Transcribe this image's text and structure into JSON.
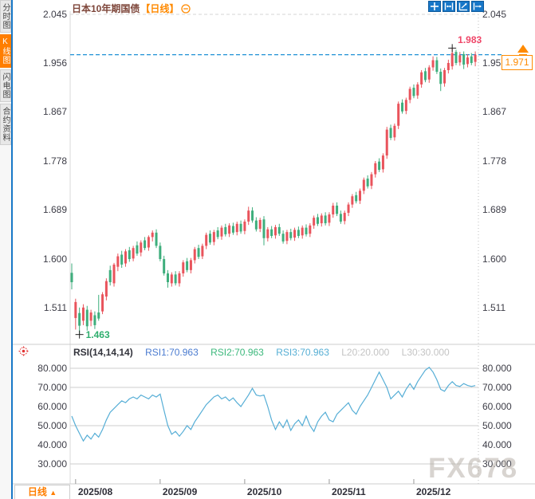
{
  "app": {
    "watermark": "FX678"
  },
  "sidebar": {
    "active_tab": "K线图",
    "tabs": [
      {
        "label": "分时图"
      },
      {
        "label": "K线图"
      },
      {
        "label": "闪电图"
      },
      {
        "label": "合约资料"
      }
    ]
  },
  "header": {
    "title": "日本10年期国债",
    "timeframe_tag": "【日线】"
  },
  "toolbar": {
    "icons": [
      "move-crosshair",
      "compress-horizontal",
      "expand-axis",
      "pan-right"
    ]
  },
  "timeframe_selector": {
    "label": "日线",
    "arrow": "▲"
  },
  "price_box": {
    "value": "1.971"
  },
  "rsi_panel": {
    "title": "RSI(14,14,14)",
    "rsi1": "RSI1:70.963",
    "rsi2": "RSI2:70.963",
    "rsi3": "RSI3:70.963",
    "l20": "L20:20.000",
    "l30": "L30:30.000"
  },
  "colors": {
    "up": "#e9545c",
    "down": "#3eae7c",
    "rsi_line": "#56aed6",
    "accent": "#ff8a00",
    "active_tab_bg": "#ff7e00",
    "toolbar_blue": "#1777c8",
    "price_line_blue": "#1e90d6",
    "high_label": "#ef4668",
    "low_label": "#2fae6e",
    "grid": "#d4d4d4"
  },
  "chart_data": {
    "type": "candlestick",
    "title": "日本10年期国债 日线 (Japan 10Y JGB yield, daily)",
    "legend_position": "none",
    "grid": "light",
    "x_axis": {
      "labels": [
        "2025/08",
        "2025/09",
        "2025/10",
        "2025/11",
        "2025/12"
      ],
      "tick_indices": [
        1,
        23,
        45,
        67,
        89
      ]
    },
    "y_axis_main": {
      "ticks": [
        "2.045",
        "1.956",
        "1.867",
        "1.778",
        "1.689",
        "1.600",
        "1.511"
      ],
      "range_shown": [
        1.463,
        2.045
      ]
    },
    "main": {
      "high": {
        "index": 99,
        "value": 1.983,
        "label": "1.983"
      },
      "low": {
        "index": 2,
        "value": 1.463,
        "label": "1.463"
      },
      "last": {
        "value": 1.971,
        "label": "1.971"
      },
      "candles_format": [
        "open",
        "high",
        "low",
        "close"
      ],
      "candles": [
        [
          1.575,
          1.592,
          1.545,
          1.558
        ],
        [
          1.493,
          1.528,
          1.472,
          1.522
        ],
        [
          1.502,
          1.512,
          1.463,
          1.479
        ],
        [
          1.488,
          1.518,
          1.48,
          1.512
        ],
        [
          1.508,
          1.515,
          1.47,
          1.478
        ],
        [
          1.488,
          1.508,
          1.478,
          1.503
        ],
        [
          1.498,
          1.505,
          1.473,
          1.48
        ],
        [
          1.503,
          1.535,
          1.488,
          1.492
        ],
        [
          1.505,
          1.54,
          1.5,
          1.536
        ],
        [
          1.532,
          1.565,
          1.525,
          1.56
        ],
        [
          1.58,
          1.588,
          1.552,
          1.558
        ],
        [
          1.556,
          1.593,
          1.55,
          1.59
        ],
        [
          1.586,
          1.61,
          1.578,
          1.605
        ],
        [
          1.608,
          1.615,
          1.584,
          1.59
        ],
        [
          1.592,
          1.618,
          1.586,
          1.614
        ],
        [
          1.616,
          1.622,
          1.595,
          1.6
        ],
        [
          1.601,
          1.624,
          1.596,
          1.62
        ],
        [
          1.625,
          1.632,
          1.606,
          1.61
        ],
        [
          1.612,
          1.634,
          1.605,
          1.63
        ],
        [
          1.634,
          1.64,
          1.616,
          1.62
        ],
        [
          1.621,
          1.643,
          1.615,
          1.64
        ],
        [
          1.64,
          1.652,
          1.632,
          1.648
        ],
        [
          1.648,
          1.654,
          1.62,
          1.624
        ],
        [
          1.624,
          1.63,
          1.596,
          1.6
        ],
        [
          1.6,
          1.606,
          1.57,
          1.574
        ],
        [
          1.574,
          1.58,
          1.548,
          1.558
        ],
        [
          1.556,
          1.576,
          1.55,
          1.572
        ],
        [
          1.572,
          1.578,
          1.552,
          1.556
        ],
        [
          1.556,
          1.578,
          1.55,
          1.574
        ],
        [
          1.574,
          1.598,
          1.568,
          1.594
        ],
        [
          1.596,
          1.602,
          1.576,
          1.58
        ],
        [
          1.58,
          1.602,
          1.574,
          1.598
        ],
        [
          1.598,
          1.622,
          1.592,
          1.618
        ],
        [
          1.62,
          1.626,
          1.6,
          1.604
        ],
        [
          1.605,
          1.628,
          1.6,
          1.624
        ],
        [
          1.624,
          1.648,
          1.618,
          1.644
        ],
        [
          1.646,
          1.652,
          1.626,
          1.63
        ],
        [
          1.631,
          1.653,
          1.625,
          1.649
        ],
        [
          1.652,
          1.658,
          1.636,
          1.64
        ],
        [
          1.641,
          1.661,
          1.635,
          1.657
        ],
        [
          1.658,
          1.664,
          1.641,
          1.645
        ],
        [
          1.646,
          1.665,
          1.64,
          1.661
        ],
        [
          1.66,
          1.666,
          1.644,
          1.648
        ],
        [
          1.649,
          1.668,
          1.643,
          1.664
        ],
        [
          1.664,
          1.67,
          1.646,
          1.65
        ],
        [
          1.651,
          1.672,
          1.645,
          1.668
        ],
        [
          1.668,
          1.695,
          1.662,
          1.688
        ],
        [
          1.688,
          1.694,
          1.666,
          1.67
        ],
        [
          1.67,
          1.676,
          1.65,
          1.654
        ],
        [
          1.655,
          1.675,
          1.649,
          1.671
        ],
        [
          1.672,
          1.678,
          1.625,
          1.638
        ],
        [
          1.638,
          1.658,
          1.632,
          1.654
        ],
        [
          1.654,
          1.66,
          1.638,
          1.642
        ],
        [
          1.643,
          1.662,
          1.637,
          1.658
        ],
        [
          1.658,
          1.664,
          1.642,
          1.646
        ],
        [
          1.646,
          1.652,
          1.628,
          1.632
        ],
        [
          1.633,
          1.653,
          1.627,
          1.649
        ],
        [
          1.649,
          1.655,
          1.634,
          1.638
        ],
        [
          1.639,
          1.657,
          1.633,
          1.653
        ],
        [
          1.653,
          1.659,
          1.638,
          1.642
        ],
        [
          1.643,
          1.661,
          1.637,
          1.657
        ],
        [
          1.657,
          1.663,
          1.641,
          1.645
        ],
        [
          1.646,
          1.665,
          1.64,
          1.661
        ],
        [
          1.661,
          1.679,
          1.655,
          1.675
        ],
        [
          1.676,
          1.682,
          1.66,
          1.664
        ],
        [
          1.665,
          1.683,
          1.659,
          1.679
        ],
        [
          1.679,
          1.685,
          1.661,
          1.665
        ],
        [
          1.666,
          1.685,
          1.66,
          1.681
        ],
        [
          1.681,
          1.702,
          1.675,
          1.697
        ],
        [
          1.697,
          1.703,
          1.678,
          1.682
        ],
        [
          1.682,
          1.688,
          1.664,
          1.668
        ],
        [
          1.669,
          1.688,
          1.663,
          1.684
        ],
        [
          1.684,
          1.703,
          1.678,
          1.699
        ],
        [
          1.699,
          1.718,
          1.693,
          1.714
        ],
        [
          1.716,
          1.722,
          1.701,
          1.705
        ],
        [
          1.706,
          1.728,
          1.7,
          1.724
        ],
        [
          1.724,
          1.748,
          1.718,
          1.744
        ],
        [
          1.746,
          1.752,
          1.728,
          1.732
        ],
        [
          1.733,
          1.758,
          1.727,
          1.754
        ],
        [
          1.754,
          1.778,
          1.748,
          1.774
        ],
        [
          1.777,
          1.783,
          1.758,
          1.762
        ],
        [
          1.763,
          1.792,
          1.757,
          1.788
        ],
        [
          1.788,
          1.84,
          1.782,
          1.835
        ],
        [
          1.838,
          1.844,
          1.816,
          1.82
        ],
        [
          1.821,
          1.846,
          1.815,
          1.842
        ],
        [
          1.842,
          1.886,
          1.836,
          1.882
        ],
        [
          1.884,
          1.89,
          1.864,
          1.868
        ],
        [
          1.869,
          1.893,
          1.863,
          1.889
        ],
        [
          1.889,
          1.913,
          1.883,
          1.909
        ],
        [
          1.911,
          1.917,
          1.892,
          1.896
        ],
        [
          1.897,
          1.921,
          1.891,
          1.917
        ],
        [
          1.917,
          1.943,
          1.911,
          1.939
        ],
        [
          1.941,
          1.947,
          1.921,
          1.925
        ],
        [
          1.926,
          1.952,
          1.92,
          1.948
        ],
        [
          1.948,
          1.968,
          1.942,
          1.961
        ],
        [
          1.961,
          1.967,
          1.936,
          1.94
        ],
        [
          1.94,
          1.946,
          1.905,
          1.918
        ],
        [
          1.919,
          1.947,
          1.913,
          1.943
        ],
        [
          1.943,
          1.962,
          1.937,
          1.956
        ],
        [
          1.95,
          1.983,
          1.944,
          1.974
        ],
        [
          1.976,
          1.98,
          1.952,
          1.956
        ],
        [
          1.957,
          1.976,
          1.951,
          1.97
        ],
        [
          1.972,
          1.977,
          1.945,
          1.953
        ],
        [
          1.954,
          1.972,
          1.948,
          1.966
        ],
        [
          1.968,
          1.974,
          1.952,
          1.956
        ],
        [
          1.958,
          1.977,
          1.95,
          1.971
        ]
      ]
    },
    "rsi": {
      "yticks": [
        "80.000",
        "70.000",
        "60.000",
        "50.000",
        "40.000",
        "30.000"
      ],
      "gridlines": [
        80,
        70,
        50,
        30
      ],
      "values": [
        55,
        50,
        46,
        42,
        45,
        43,
        46,
        44,
        48,
        53,
        57,
        59,
        61,
        63,
        62,
        64,
        65,
        64,
        66,
        65,
        64,
        66,
        65,
        66.5,
        58,
        50,
        45.5,
        47,
        44.5,
        47,
        50,
        48,
        52,
        55,
        58,
        61,
        63,
        65,
        66,
        64,
        65,
        63,
        64.5,
        62,
        60,
        63,
        66,
        69.5,
        66,
        65.5,
        66,
        60,
        53,
        48,
        52,
        49,
        53,
        47.5,
        51,
        53,
        50,
        55,
        50,
        47,
        52,
        55,
        57,
        53,
        52,
        56,
        58,
        60,
        62,
        58,
        56,
        60,
        63,
        66,
        70,
        74,
        78,
        74,
        70,
        64,
        66,
        68,
        65,
        69,
        72,
        69,
        73,
        76,
        79,
        80.5,
        78,
        74,
        69,
        68,
        71,
        73,
        71,
        70.5,
        72,
        71,
        70.5,
        70.963
      ]
    }
  }
}
